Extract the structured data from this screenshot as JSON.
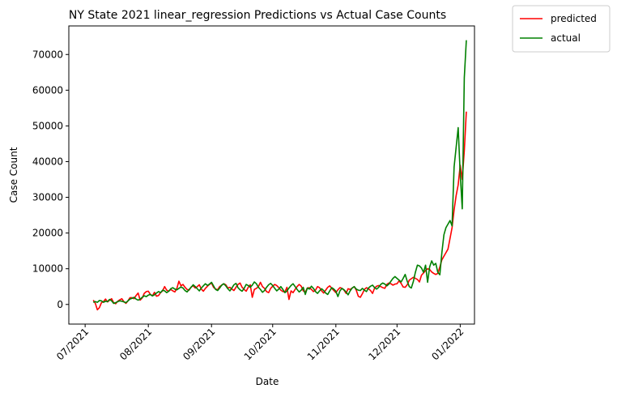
{
  "chart_data": {
    "type": "line",
    "title": "NY State 2021 linear_regression Predictions vs Actual Case Counts",
    "xlabel": "Date",
    "ylabel": "Case Count",
    "x_ticks": [
      "07/2021",
      "08/2021",
      "09/2021",
      "10/2021",
      "11/2021",
      "12/2021",
      "01/2022"
    ],
    "y_ticks": [
      "0",
      "10000",
      "20000",
      "30000",
      "40000",
      "50000",
      "60000",
      "70000"
    ],
    "ylim": [
      -5500,
      78000
    ],
    "xlim": [
      "2021-06-23",
      "2022-01-08"
    ],
    "grid": false,
    "legend_position": "outside-top-right",
    "x_start": "2021-07-05",
    "series": [
      {
        "name": "predicted",
        "color": "#ff0000",
        "values": [
          1200,
          300,
          -1500,
          -900,
          500,
          800,
          1500,
          700,
          1200,
          1600,
          500,
          200,
          900,
          1300,
          1600,
          800,
          300,
          1000,
          1900,
          1900,
          1600,
          2500,
          3200,
          1200,
          1800,
          3100,
          3600,
          3700,
          2800,
          2400,
          3400,
          2300,
          2500,
          3300,
          3800,
          5000,
          4000,
          3700,
          4200,
          3800,
          3500,
          4500,
          6500,
          5200,
          5600,
          4800,
          4200,
          4000,
          4900,
          5200,
          4600,
          5000,
          5500,
          4300,
          3700,
          4500,
          5100,
          5600,
          6000,
          4800,
          4300,
          4100,
          5000,
          5400,
          5800,
          5500,
          4600,
          4800,
          4300,
          3900,
          4800,
          5600,
          6000,
          4800,
          4200,
          3700,
          4800,
          5500,
          2000,
          4200,
          4500,
          5000,
          6200,
          5000,
          4500,
          3600,
          3300,
          4500,
          5100,
          5600,
          5300,
          4700,
          4000,
          3600,
          3500,
          4800,
          1400,
          3800,
          3300,
          4200,
          5000,
          5600,
          5100,
          3800,
          3400,
          4600,
          4700,
          4200,
          3600,
          4000,
          5000,
          4700,
          3800,
          3200,
          4000,
          4800,
          5200,
          4500,
          3900,
          3300,
          4100,
          4700,
          4500,
          4000,
          3100,
          4400,
          4200,
          4600,
          5000,
          4000,
          2300,
          2000,
          3000,
          4200,
          4700,
          4400,
          3900,
          3100,
          4600,
          5100,
          5300,
          5000,
          4700,
          4500,
          5600,
          6000,
          5800,
          5400,
          5700,
          5800,
          6600,
          5900,
          4900,
          4800,
          5500,
          6800,
          7200,
          7600,
          7300,
          7000,
          6300,
          8200,
          8800,
          9500,
          10000,
          9800,
          9100,
          8700,
          8400,
          8700,
          10500,
          12500,
          13500,
          14500,
          15500,
          18500,
          21500,
          26500,
          30500,
          33500,
          39000,
          35000,
          43000,
          54000
        ]
      },
      {
        "name": "actual",
        "color": "#008000",
        "values": [
          600,
          800,
          600,
          1100,
          1000,
          600,
          900,
          800,
          1400,
          1000,
          300,
          500,
          800,
          1000,
          900,
          700,
          500,
          1000,
          1500,
          1700,
          2000,
          1500,
          1200,
          1500,
          2000,
          2400,
          2200,
          2600,
          2800,
          2400,
          2700,
          3200,
          3600,
          3300,
          4000,
          3800,
          3300,
          3700,
          4400,
          4700,
          4300,
          4100,
          4500,
          4900,
          4600,
          3900,
          3500,
          4200,
          4800,
          5500,
          5000,
          4400,
          3800,
          4600,
          5200,
          5800,
          5300,
          5700,
          6200,
          5200,
          4200,
          3900,
          4600,
          5400,
          5800,
          5200,
          4400,
          3800,
          4600,
          5500,
          5900,
          4700,
          4100,
          3700,
          4500,
          5600,
          5300,
          4800,
          5400,
          6300,
          5800,
          4800,
          4200,
          3400,
          3900,
          4800,
          5500,
          5900,
          5300,
          4500,
          3800,
          4300,
          5000,
          4200,
          3300,
          3800,
          4600,
          5300,
          5800,
          5000,
          4200,
          3500,
          4000,
          4800,
          2800,
          4600,
          4300,
          5100,
          4500,
          3600,
          3100,
          3800,
          4400,
          3900,
          3200,
          2800,
          3800,
          4700,
          4300,
          3700,
          2200,
          3800,
          4500,
          4100,
          3500,
          2700,
          3800,
          4600,
          5000,
          4300,
          4000,
          3900,
          4500,
          4000,
          3600,
          4600,
          5100,
          5400,
          4700,
          4300,
          4800,
          5600,
          6000,
          5700,
          5200,
          5700,
          6500,
          7300,
          7800,
          7300,
          6800,
          6300,
          7300,
          8400,
          6500,
          5000,
          4600,
          6400,
          9000,
          11000,
          10800,
          10200,
          9000,
          11000,
          6200,
          10500,
          12200,
          11000,
          11500,
          9000,
          8300,
          14500,
          19500,
          21500,
          22500,
          23500,
          22000,
          38500,
          44000,
          49500,
          36500,
          26800,
          63500,
          74000
        ]
      }
    ]
  }
}
